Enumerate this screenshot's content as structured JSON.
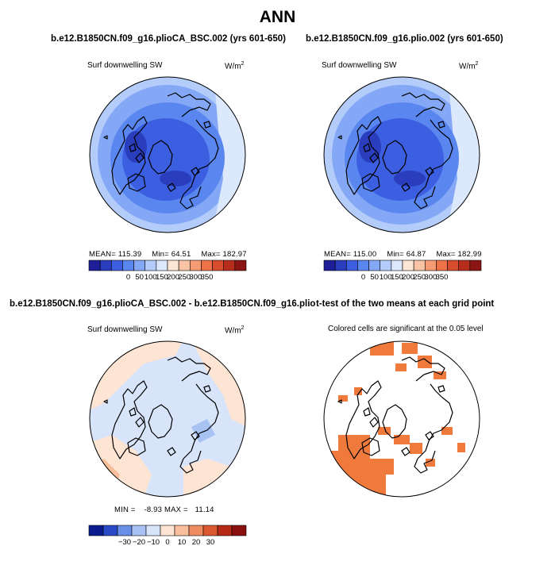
{
  "figure": {
    "title": "ANN"
  },
  "panels": [
    {
      "case_title": "b.e12.B1850CN.f09_g16.plioCA_BSC.002 (yrs 601-650)",
      "variable": "Surf downwelling SW",
      "units": "W/m",
      "units_exp": "2",
      "stats": {
        "mean_label": "MEAN=",
        "mean": "115.39",
        "min_label": "Min=",
        "min": "64.51",
        "max_label": "Max=",
        "max": "182.97"
      },
      "colorbar": {
        "labels": [
          "0",
          "50",
          "100",
          "150",
          "200",
          "250",
          "300",
          "350"
        ]
      }
    },
    {
      "case_title": "b.e12.B1850CN.f09_g16.plio.002 (yrs 601-650)",
      "variable": "Surf downwelling SW",
      "units": "W/m",
      "units_exp": "2",
      "stats": {
        "mean_label": "MEAN=",
        "mean": "115.00",
        "min_label": "Min=",
        "min": "64.87",
        "max_label": "Max=",
        "max": "182.99"
      },
      "colorbar": {
        "labels": [
          "0",
          "50",
          "100",
          "150",
          "200",
          "250",
          "300",
          "350"
        ]
      }
    },
    {
      "case_title": "b.e12.B1850CN.f09_g16.plioCA_BSC.002 - b.e12.B1850CN.f09_g16.plio.002",
      "variable": "Surf downwelling SW",
      "units": "W/m",
      "units_exp": "2",
      "stats": {
        "min_label": "MIN =",
        "min": "-8.93",
        "max_label": "MAX =",
        "max": "11.14"
      },
      "colorbar": {
        "labels": [
          "−30",
          "−20",
          "−10",
          "0",
          "10",
          "20",
          "30"
        ]
      }
    },
    {
      "case_title": "t-test of the two means at each grid point",
      "subtitle": "Colored cells are significant at the 0.05 level"
    }
  ],
  "colors": {
    "abs_scale": [
      "#1f1f99",
      "#2a3dbd",
      "#3b5fe0",
      "#5a86f0",
      "#84a8f5",
      "#b3ccfa",
      "#dce8fb",
      "#fde6d6",
      "#f9c4a6",
      "#f69b74",
      "#ee7148",
      "#d84d2c",
      "#b62d1c",
      "#8a1512"
    ],
    "diff_scale": [
      "#0b1c8f",
      "#2a49c6",
      "#6a8fe6",
      "#a8c2f4",
      "#d7e4fa",
      "#fde4d3",
      "#f9bf9d",
      "#f08c62",
      "#dc5830",
      "#b42a16",
      "#8a1010"
    ],
    "signif": "#f07a3c"
  }
}
